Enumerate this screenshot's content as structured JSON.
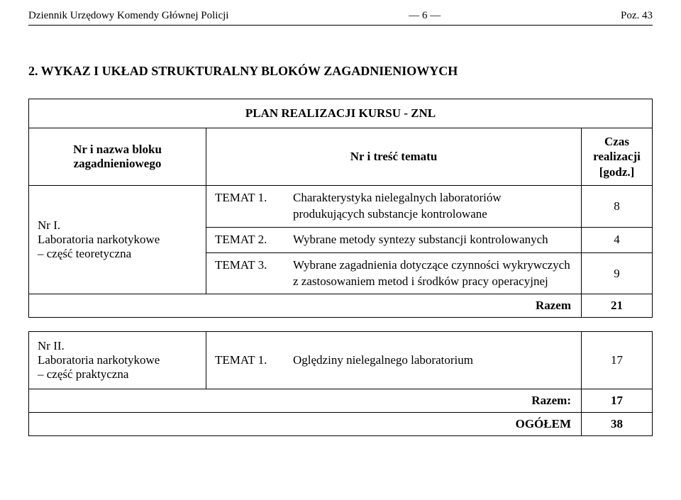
{
  "header": {
    "left": "Dziennik Urzędowy Komendy Głównej Policji",
    "center": "— 6 —",
    "right": "Poz. 43"
  },
  "section_title": "2. WYKAZ I UKŁAD STRUKTURALNY BLOKÓW ZAGADNIENIOWYCH",
  "plan_title": "PLAN REALIZACJI KURSU - ZNL",
  "columns": {
    "c1": "Nr i nazwa bloku zagadnieniowego",
    "c2": "Nr i treść tematu",
    "c3_l1": "Czas",
    "c3_l2": "realizacji",
    "c3_l3": "[godz.]"
  },
  "block1": {
    "label_l1": "Nr I.",
    "label_l2": "Laboratoria narkotykowe",
    "label_l3": "– część teoretyczna",
    "topics": {
      "t1_id": "TEMAT 1.",
      "t1_txt": "Charakterystyka nielegalnych laboratoriów produkujących substancje kontrolowane",
      "t1_h": "8",
      "t2_id": "TEMAT 2.",
      "t2_txt": "Wybrane metody syntezy substancji kontrolowanych",
      "t2_h": "4",
      "t3_id": "TEMAT 3.",
      "t3_txt": "Wybrane zagadnienia dotyczące czynności wykrywczych z zastosowaniem metod i środków pracy operacyjnej",
      "t3_h": "9"
    },
    "razem_label": "Razem",
    "razem_val": "21"
  },
  "block2": {
    "label_l1": "Nr II.",
    "label_l2": "Laboratoria narkotykowe",
    "label_l3": "– część praktyczna",
    "t1_id": "TEMAT 1.",
    "t1_txt": "Oględziny nielegalnego laboratorium",
    "t1_h": "17",
    "razem_label": "Razem:",
    "razem_val": "17",
    "ogolem_label": "OGÓŁEM",
    "ogolem_val": "38"
  }
}
